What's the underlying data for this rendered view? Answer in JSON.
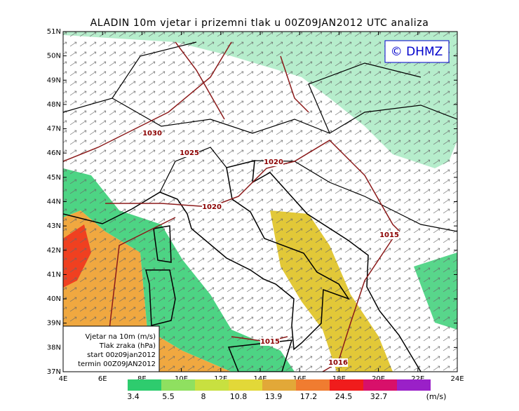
{
  "header": {
    "title": "ALADIN 10m vjetar i prizemni tlak u 00Z09JAN2012 UTC analiza"
  },
  "map": {
    "lat_labels": [
      "51N",
      "50N",
      "49N",
      "48N",
      "47N",
      "46N",
      "45N",
      "44N",
      "43N",
      "42N",
      "41N",
      "40N",
      "39N",
      "38N",
      "37N"
    ],
    "lon_labels": [
      "4E",
      "6E",
      "8E",
      "10E",
      "12E",
      "14E",
      "16E",
      "18E",
      "20E",
      "22E",
      "24E"
    ],
    "isobar_labels": [
      "1030",
      "1025",
      "1020",
      "1020",
      "1015",
      "1015",
      "1016"
    ],
    "logo": "© DHMZ"
  },
  "info_box": {
    "lines": [
      "Vjetar na 10m (m/s)",
      "Tlak zraka (hPa)",
      "start 00z09jan2012",
      "termin 00Z09JAN2012"
    ]
  },
  "colorbar": {
    "values": [
      3.4,
      5.5,
      8,
      10.8,
      13.9,
      17.2,
      24.5,
      32.7
    ],
    "unit": "(m/s)",
    "colors": [
      "#2ecc6e",
      "#8fe060",
      "#c8e040",
      "#e2d838",
      "#e2a838",
      "#f07c30",
      "#f01c1c",
      "#d8106a",
      "#9a20c8"
    ]
  }
}
